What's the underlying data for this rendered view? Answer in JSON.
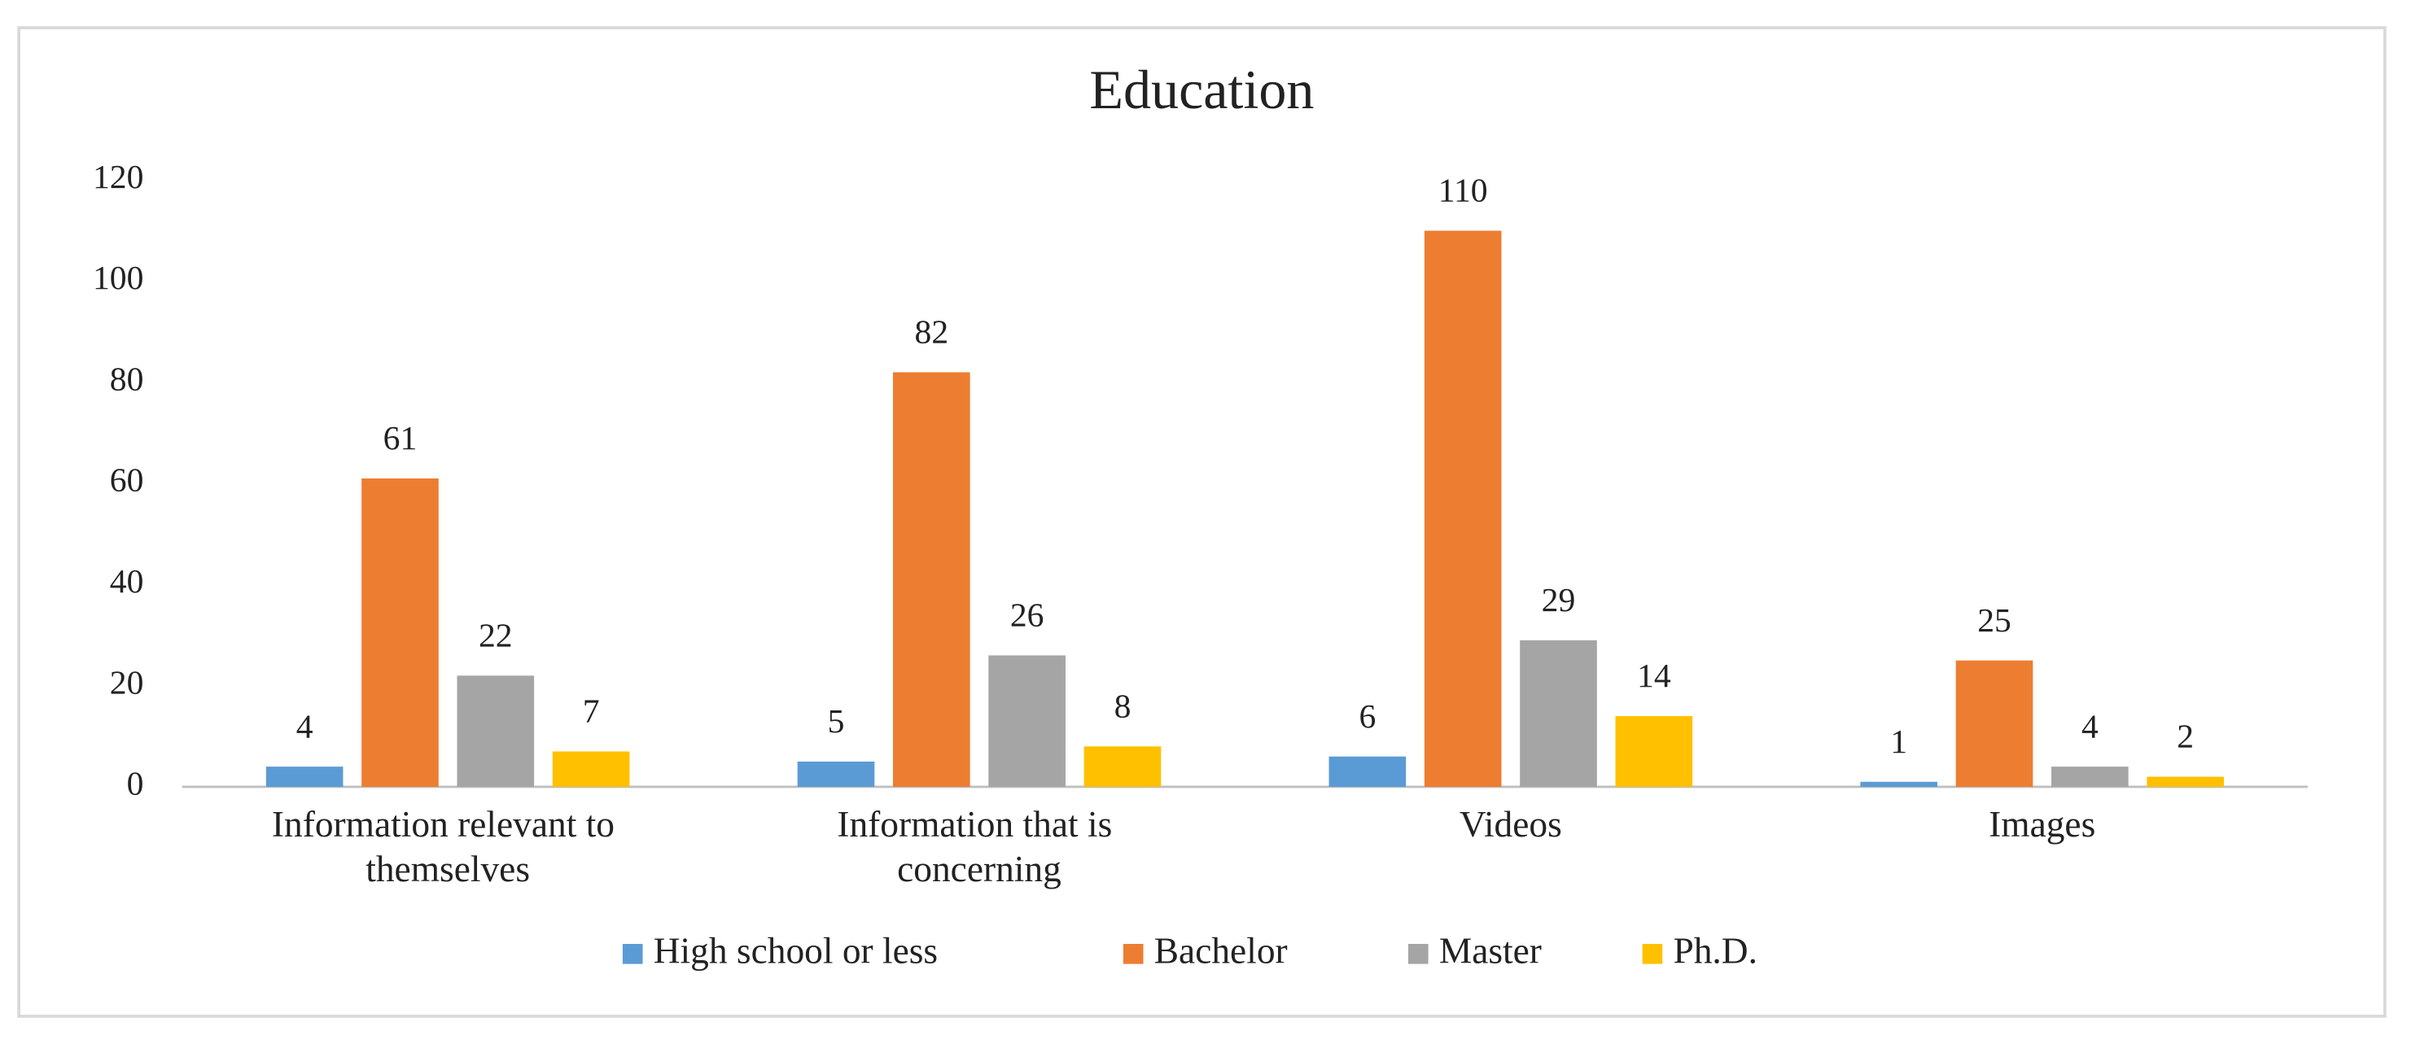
{
  "chart_data": {
    "type": "bar",
    "title": "Education",
    "categories": [
      "Information relevant to themselves",
      "Information that is concerning",
      "Videos",
      "Images"
    ],
    "series": [
      {
        "name": "High school or less",
        "color": "#5b9bd5",
        "values": [
          4,
          5,
          6,
          1
        ]
      },
      {
        "name": "Bachelor",
        "color": "#ed7d31",
        "values": [
          61,
          82,
          110,
          25
        ]
      },
      {
        "name": "Master",
        "color": "#a5a5a5",
        "values": [
          22,
          26,
          29,
          4
        ]
      },
      {
        "name": "Ph.D.",
        "color": "#ffc000",
        "values": [
          7,
          8,
          14,
          2
        ]
      }
    ],
    "ylim": [
      0,
      120
    ],
    "yticks": [
      0,
      20,
      40,
      60,
      80,
      100,
      120
    ],
    "grid": false,
    "legend": "bottom"
  }
}
